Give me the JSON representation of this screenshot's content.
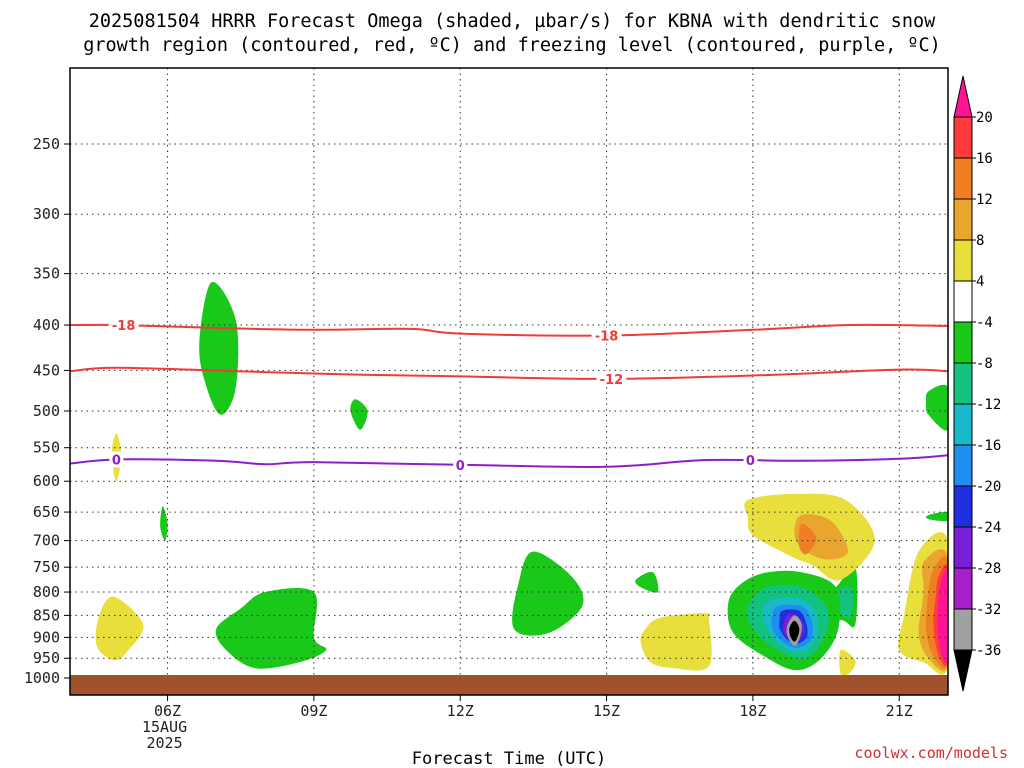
{
  "title_line1": "2025081504 HRRR Forecast Omega (shaded, µbar/s) for KBNA with dendritic snow",
  "title_line2": "growth region (contoured, red, ºC) and freezing level (contoured, purple, ºC)",
  "credit": "coolwx.com/models",
  "chart_data": {
    "type": "area",
    "xlabel": "Forecast Time (UTC)",
    "x_ticks": [
      {
        "label": "06Z",
        "sub": [
          "15AUG",
          "2025"
        ],
        "hour": 6
      },
      {
        "label": "09Z",
        "sub": [],
        "hour": 9
      },
      {
        "label": "12Z",
        "sub": [],
        "hour": 12
      },
      {
        "label": "15Z",
        "sub": [],
        "hour": 15
      },
      {
        "label": "18Z",
        "sub": [],
        "hour": 18
      },
      {
        "label": "21Z",
        "sub": [],
        "hour": 21
      }
    ],
    "xlim": [
      4.0,
      22.0
    ],
    "y_ticks": [
      250,
      300,
      350,
      400,
      450,
      500,
      550,
      600,
      650,
      700,
      750,
      800,
      850,
      900,
      950,
      1000
    ],
    "ylim_hpa": [
      200,
      1015
    ],
    "y_scale": "log-pressure (inverted)",
    "grid": "dotted",
    "colorbar": {
      "units": "µbar/s",
      "labels": [
        "20",
        "16",
        "12",
        "8",
        "4",
        "-4",
        "-8",
        "-12",
        "-16",
        "-20",
        "-24",
        "-28",
        "-32",
        "-36"
      ],
      "colors": [
        "#ff1493",
        "#ff3b3b",
        "#f07e22",
        "#e8a62e",
        "#e8de3c",
        "#ffffff",
        "#19c819",
        "#13c27e",
        "#18b9c8",
        "#1e8ff0",
        "#2030e0",
        "#7a1ed8",
        "#a81ec8",
        "#a0a0a0",
        "#000000"
      ]
    },
    "contours": [
      {
        "kind": "dendritic",
        "color": "#ef3b3b",
        "value_label": "-18",
        "points": [
          [
            4.0,
            400
          ],
          [
            5.0,
            400
          ],
          [
            7.0,
            403
          ],
          [
            9.0,
            405
          ],
          [
            11.0,
            404
          ],
          [
            12.0,
            409
          ],
          [
            15.0,
            411
          ],
          [
            18.0,
            405
          ],
          [
            20.0,
            400
          ],
          [
            22.0,
            401
          ]
        ],
        "label_at": [
          [
            5.1,
            400
          ],
          [
            15.0,
            411
          ]
        ]
      },
      {
        "kind": "dendritic",
        "color": "#ef3b3b",
        "value_label": "-12",
        "points": [
          [
            4.0,
            451
          ],
          [
            5.0,
            447
          ],
          [
            8.0,
            452
          ],
          [
            10.0,
            455
          ],
          [
            12.0,
            457
          ],
          [
            15.0,
            460
          ],
          [
            18.0,
            456
          ],
          [
            21.0,
            449
          ],
          [
            22.0,
            451
          ]
        ],
        "label_at": [
          [
            15.1,
            460
          ]
        ]
      },
      {
        "kind": "freezing",
        "color": "#8e1fc8",
        "value_label": "0",
        "points": [
          [
            4.0,
            573
          ],
          [
            5.0,
            567
          ],
          [
            7.0,
            569
          ],
          [
            8.0,
            574
          ],
          [
            9.0,
            571
          ],
          [
            12.0,
            575
          ],
          [
            15.0,
            578
          ],
          [
            17.0,
            568
          ],
          [
            19.0,
            569
          ],
          [
            21.0,
            566
          ],
          [
            22.0,
            561
          ]
        ],
        "label_at": [
          [
            4.95,
            567
          ],
          [
            12.0,
            575
          ],
          [
            17.95,
            568
          ]
        ]
      }
    ],
    "omega_regions": [
      {
        "color": "#19c819",
        "value": -6,
        "points": [
          [
            6.9,
            358
          ],
          [
            7.4,
            395
          ],
          [
            7.4,
            470
          ],
          [
            7.1,
            505
          ],
          [
            6.8,
            470
          ],
          [
            6.65,
            420
          ]
        ]
      },
      {
        "color": "#19c819",
        "value": -6,
        "points": [
          [
            9.85,
            485
          ],
          [
            10.1,
            500
          ],
          [
            9.95,
            525
          ],
          [
            9.75,
            500
          ]
        ]
      },
      {
        "color": "#19c819",
        "value": -6,
        "points": [
          [
            5.9,
            640
          ],
          [
            6.0,
            670
          ],
          [
            5.95,
            700
          ],
          [
            5.85,
            675
          ]
        ]
      },
      {
        "color": "#19c819",
        "value": -6,
        "points": [
          [
            8.0,
            800
          ],
          [
            9.0,
            800
          ],
          [
            9.0,
            900
          ],
          [
            9.25,
            930
          ],
          [
            8.7,
            960
          ],
          [
            7.8,
            975
          ],
          [
            7.2,
            930
          ],
          [
            7.0,
            880
          ],
          [
            7.5,
            835
          ]
        ]
      },
      {
        "color": "#19c819",
        "value": -6,
        "points": [
          [
            13.5,
            720
          ],
          [
            14.3,
            770
          ],
          [
            14.5,
            830
          ],
          [
            13.8,
            890
          ],
          [
            13.1,
            880
          ],
          [
            13.2,
            780
          ]
        ]
      },
      {
        "color": "#19c819",
        "value": -6,
        "points": [
          [
            15.95,
            760
          ],
          [
            16.05,
            800
          ],
          [
            15.7,
            790
          ],
          [
            15.6,
            775
          ]
        ]
      },
      {
        "color": "#19c819",
        "value": -6,
        "points": [
          [
            21.6,
            475
          ],
          [
            22.0,
            470
          ],
          [
            22.0,
            525
          ],
          [
            21.6,
            505
          ],
          [
            21.55,
            490
          ]
        ]
      },
      {
        "color": "#19c819",
        "value": -6,
        "points": [
          [
            21.6,
            655
          ],
          [
            22.0,
            650
          ],
          [
            22.0,
            665
          ],
          [
            21.6,
            662
          ]
        ]
      },
      {
        "color": "#19c819",
        "value": -6,
        "points": [
          [
            20.1,
            750
          ],
          [
            20.1,
            870
          ],
          [
            19.8,
            860
          ],
          [
            19.1,
            860
          ],
          [
            19.3,
            815
          ],
          [
            19.7,
            790
          ]
        ]
      },
      {
        "color": "#13c27e",
        "value": -10,
        "points": [
          [
            20.0,
            790
          ],
          [
            20.0,
            855
          ],
          [
            19.6,
            830
          ],
          [
            19.5,
            810
          ]
        ]
      },
      {
        "color": "#19c819",
        "value": -6,
        "points": [
          [
            18.3,
            760
          ],
          [
            19.0,
            760
          ],
          [
            19.7,
            790
          ],
          [
            19.75,
            880
          ],
          [
            19.4,
            950
          ],
          [
            18.9,
            980
          ],
          [
            18.3,
            950
          ],
          [
            17.6,
            890
          ],
          [
            17.5,
            820
          ],
          [
            17.8,
            780
          ]
        ]
      },
      {
        "color": "#13c27e",
        "value": -10,
        "points": [
          [
            18.3,
            790
          ],
          [
            19.0,
            790
          ],
          [
            19.5,
            830
          ],
          [
            19.5,
            890
          ],
          [
            19.1,
            950
          ],
          [
            18.5,
            930
          ],
          [
            18.0,
            880
          ],
          [
            17.9,
            830
          ]
        ]
      },
      {
        "color": "#18b9c8",
        "value": -14,
        "points": [
          [
            18.4,
            815
          ],
          [
            19.0,
            815
          ],
          [
            19.3,
            850
          ],
          [
            19.3,
            900
          ],
          [
            19.0,
            935
          ],
          [
            18.6,
            920
          ],
          [
            18.3,
            880
          ],
          [
            18.2,
            840
          ]
        ]
      },
      {
        "color": "#1e8ff0",
        "value": -18,
        "points": [
          [
            18.5,
            830
          ],
          [
            19.0,
            830
          ],
          [
            19.2,
            860
          ],
          [
            19.2,
            905
          ],
          [
            18.9,
            925
          ],
          [
            18.6,
            910
          ],
          [
            18.4,
            880
          ],
          [
            18.4,
            850
          ]
        ]
      },
      {
        "color": "#2030e0",
        "value": -22,
        "points": [
          [
            18.6,
            840
          ],
          [
            18.95,
            840
          ],
          [
            19.1,
            870
          ],
          [
            19.1,
            900
          ],
          [
            18.9,
            915
          ],
          [
            18.7,
            905
          ],
          [
            18.55,
            880
          ],
          [
            18.55,
            860
          ]
        ]
      },
      {
        "color": "#7a1ed8",
        "value": -26,
        "points": [
          [
            18.7,
            850
          ],
          [
            18.9,
            850
          ],
          [
            19.05,
            875
          ],
          [
            19.0,
            900
          ],
          [
            18.85,
            910
          ],
          [
            18.7,
            900
          ],
          [
            18.62,
            880
          ]
        ]
      },
      {
        "color": "#a0a0a0",
        "value": -34,
        "points": [
          [
            18.85,
            850
          ],
          [
            19.0,
            870
          ],
          [
            18.95,
            905
          ],
          [
            18.85,
            920
          ],
          [
            18.72,
            900
          ],
          [
            18.7,
            875
          ]
        ]
      },
      {
        "color": "#000000",
        "value": -40,
        "points": [
          [
            18.85,
            862
          ],
          [
            18.95,
            878
          ],
          [
            18.92,
            898
          ],
          [
            18.85,
            910
          ],
          [
            18.77,
            898
          ],
          [
            18.75,
            878
          ]
        ]
      },
      {
        "color": "#e8de3c",
        "value": 6,
        "points": [
          [
            4.95,
            530
          ],
          [
            5.05,
            560
          ],
          [
            4.95,
            600
          ],
          [
            4.85,
            560
          ]
        ]
      },
      {
        "color": "#e8de3c",
        "value": 6,
        "points": [
          [
            4.9,
            810
          ],
          [
            5.5,
            870
          ],
          [
            5.2,
            930
          ],
          [
            4.9,
            955
          ],
          [
            4.55,
            920
          ],
          [
            4.6,
            850
          ]
        ]
      },
      {
        "color": "#e8de3c",
        "value": 6,
        "points": [
          [
            17.9,
            630
          ],
          [
            18.9,
            620
          ],
          [
            19.9,
            630
          ],
          [
            20.5,
            700
          ],
          [
            19.8,
            775
          ],
          [
            19.2,
            745
          ],
          [
            18.8,
            730
          ],
          [
            18.0,
            690
          ],
          [
            17.9,
            660
          ]
        ]
      },
      {
        "color": "#e8a62e",
        "value": 10,
        "points": [
          [
            19.0,
            655
          ],
          [
            19.6,
            665
          ],
          [
            19.95,
            720
          ],
          [
            19.5,
            735
          ],
          [
            19.0,
            715
          ],
          [
            18.85,
            685
          ]
        ]
      },
      {
        "color": "#f07e22",
        "value": 14,
        "points": [
          [
            19.0,
            670
          ],
          [
            19.3,
            695
          ],
          [
            19.1,
            725
          ],
          [
            18.95,
            710
          ]
        ]
      },
      {
        "color": "#e8de3c",
        "value": 6,
        "points": [
          [
            16.1,
            855
          ],
          [
            17.0,
            845
          ],
          [
            17.1,
            860
          ],
          [
            17.1,
            970
          ],
          [
            16.4,
            975
          ],
          [
            15.9,
            960
          ],
          [
            15.7,
            910
          ],
          [
            15.8,
            880
          ]
        ]
      },
      {
        "color": "#e8de3c",
        "value": 6,
        "points": [
          [
            19.8,
            930
          ],
          [
            20.1,
            955
          ],
          [
            20.0,
            985
          ],
          [
            19.8,
            990
          ]
        ]
      },
      {
        "color": "#e8de3c",
        "value": 6,
        "points": [
          [
            21.4,
            720
          ],
          [
            22.0,
            700
          ],
          [
            22.0,
            970
          ],
          [
            21.5,
            960
          ],
          [
            21.0,
            930
          ],
          [
            21.1,
            850
          ]
        ]
      },
      {
        "color": "#e8a62e",
        "value": 10,
        "points": [
          [
            21.5,
            740
          ],
          [
            22.0,
            730
          ],
          [
            22.0,
            965
          ],
          [
            21.6,
            950
          ],
          [
            21.4,
            890
          ],
          [
            21.5,
            800
          ]
        ]
      },
      {
        "color": "#f07e22",
        "value": 14,
        "points": [
          [
            21.7,
            755
          ],
          [
            22.0,
            740
          ],
          [
            22.0,
            960
          ],
          [
            21.7,
            945
          ],
          [
            21.55,
            880
          ],
          [
            21.6,
            800
          ]
        ]
      },
      {
        "color": "#ff3b3b",
        "value": 18,
        "points": [
          [
            21.8,
            770
          ],
          [
            22.0,
            755
          ],
          [
            22.0,
            955
          ],
          [
            21.8,
            940
          ],
          [
            21.7,
            870
          ],
          [
            21.75,
            810
          ]
        ]
      },
      {
        "color": "#ff1493",
        "value": 22,
        "points": [
          [
            21.85,
            780
          ],
          [
            22.0,
            765
          ],
          [
            22.0,
            950
          ],
          [
            21.85,
            935
          ],
          [
            21.78,
            870
          ],
          [
            21.8,
            820
          ]
        ]
      }
    ],
    "ground_top_hpa": 1000,
    "ground_color": "#a0522d"
  }
}
